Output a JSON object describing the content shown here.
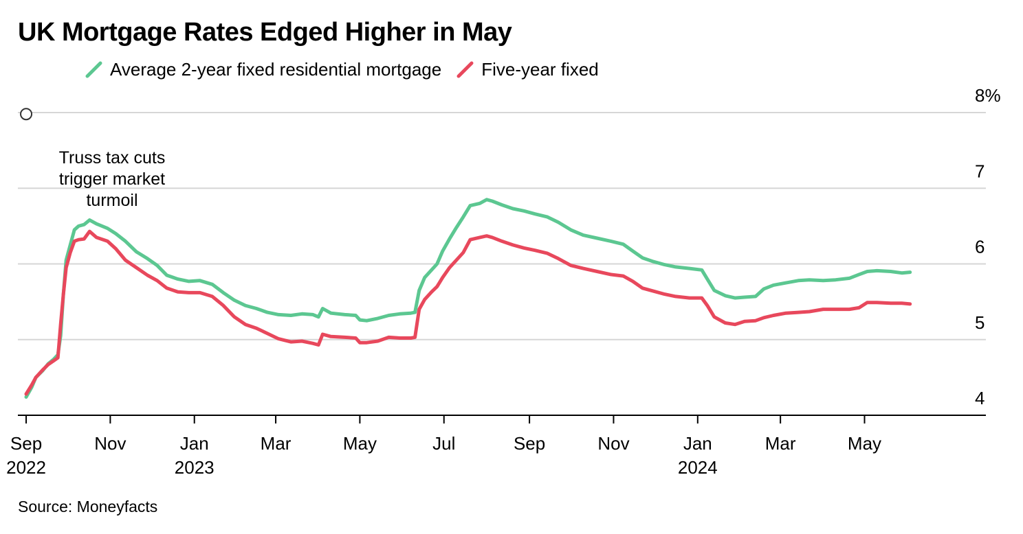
{
  "source": "Source: Moneyfacts",
  "chart_data": {
    "type": "line",
    "title": "UK Mortgage Rates Edged Higher in May",
    "xlabel": "",
    "ylabel": "",
    "ylim": [
      4,
      8
    ],
    "xlim": [
      "2022-08-26",
      "2024-07-28"
    ],
    "grid": true,
    "y_axis_side": "right",
    "legend_position": "top-left",
    "y_ticks": [
      {
        "value": 4,
        "label": "4"
      },
      {
        "value": 5,
        "label": "5"
      },
      {
        "value": 6,
        "label": "6"
      },
      {
        "value": 7,
        "label": "7"
      },
      {
        "value": 8,
        "label": "8%"
      }
    ],
    "x_ticks": [
      {
        "date": "2022-09-01",
        "label": "Sep",
        "sublabel": "2022"
      },
      {
        "date": "2022-11-01",
        "label": "Nov",
        "sublabel": ""
      },
      {
        "date": "2023-01-01",
        "label": "Jan",
        "sublabel": "2023"
      },
      {
        "date": "2023-03-01",
        "label": "Mar",
        "sublabel": ""
      },
      {
        "date": "2023-05-01",
        "label": "May",
        "sublabel": ""
      },
      {
        "date": "2023-07-01",
        "label": "Jul",
        "sublabel": ""
      },
      {
        "date": "2023-09-01",
        "label": "Sep",
        "sublabel": ""
      },
      {
        "date": "2023-11-01",
        "label": "Nov",
        "sublabel": ""
      },
      {
        "date": "2024-01-01",
        "label": "Jan",
        "sublabel": "2024"
      },
      {
        "date": "2024-03-01",
        "label": "Mar",
        "sublabel": ""
      },
      {
        "date": "2024-05-01",
        "label": "May",
        "sublabel": ""
      }
    ],
    "annotations": [
      {
        "date": "2022-09-01",
        "value": 7.98,
        "text_lines": [
          "Truss tax cuts",
          "trigger market",
          "turmoil"
        ]
      }
    ],
    "series": [
      {
        "name": "Average 2-year fixed residential mortgage",
        "color": "#5cc791",
        "points": [
          [
            "2022-09-01",
            4.24
          ],
          [
            "2022-09-05",
            4.37
          ],
          [
            "2022-09-08",
            4.5
          ],
          [
            "2022-09-13",
            4.59
          ],
          [
            "2022-09-17",
            4.68
          ],
          [
            "2022-09-21",
            4.74
          ],
          [
            "2022-09-24",
            4.8
          ],
          [
            "2022-09-26",
            5.05
          ],
          [
            "2022-09-28",
            5.6
          ],
          [
            "2022-09-30",
            6.05
          ],
          [
            "2022-10-03",
            6.25
          ],
          [
            "2022-10-06",
            6.45
          ],
          [
            "2022-10-09",
            6.5
          ],
          [
            "2022-10-13",
            6.52
          ],
          [
            "2022-10-17",
            6.58
          ],
          [
            "2022-10-22",
            6.53
          ],
          [
            "2022-10-30",
            6.47
          ],
          [
            "2022-11-05",
            6.4
          ],
          [
            "2022-11-12",
            6.3
          ],
          [
            "2022-11-20",
            6.16
          ],
          [
            "2022-11-28",
            6.07
          ],
          [
            "2022-12-05",
            5.98
          ],
          [
            "2022-12-12",
            5.85
          ],
          [
            "2022-12-20",
            5.8
          ],
          [
            "2022-12-28",
            5.77
          ],
          [
            "2023-01-05",
            5.78
          ],
          [
            "2023-01-14",
            5.73
          ],
          [
            "2023-01-22",
            5.62
          ],
          [
            "2023-01-30",
            5.52
          ],
          [
            "2023-02-07",
            5.45
          ],
          [
            "2023-02-15",
            5.41
          ],
          [
            "2023-02-23",
            5.36
          ],
          [
            "2023-03-03",
            5.33
          ],
          [
            "2023-03-12",
            5.32
          ],
          [
            "2023-03-20",
            5.34
          ],
          [
            "2023-03-28",
            5.33
          ],
          [
            "2023-04-01",
            5.3
          ],
          [
            "2023-04-04",
            5.41
          ],
          [
            "2023-04-10",
            5.35
          ],
          [
            "2023-04-20",
            5.33
          ],
          [
            "2023-04-28",
            5.32
          ],
          [
            "2023-05-01",
            5.26
          ],
          [
            "2023-05-06",
            5.25
          ],
          [
            "2023-05-14",
            5.28
          ],
          [
            "2023-05-22",
            5.32
          ],
          [
            "2023-05-30",
            5.34
          ],
          [
            "2023-06-07",
            5.35
          ],
          [
            "2023-06-10",
            5.36
          ],
          [
            "2023-06-13",
            5.65
          ],
          [
            "2023-06-17",
            5.82
          ],
          [
            "2023-06-22",
            5.92
          ],
          [
            "2023-06-26",
            6.0
          ],
          [
            "2023-06-30",
            6.17
          ],
          [
            "2023-07-05",
            6.33
          ],
          [
            "2023-07-10",
            6.48
          ],
          [
            "2023-07-15",
            6.62
          ],
          [
            "2023-07-20",
            6.77
          ],
          [
            "2023-07-27",
            6.8
          ],
          [
            "2023-08-01",
            6.85
          ],
          [
            "2023-08-05",
            6.83
          ],
          [
            "2023-08-12",
            6.78
          ],
          [
            "2023-08-20",
            6.73
          ],
          [
            "2023-08-28",
            6.7
          ],
          [
            "2023-09-05",
            6.66
          ],
          [
            "2023-09-14",
            6.62
          ],
          [
            "2023-09-22",
            6.55
          ],
          [
            "2023-10-01",
            6.45
          ],
          [
            "2023-10-10",
            6.38
          ],
          [
            "2023-10-20",
            6.34
          ],
          [
            "2023-10-30",
            6.3
          ],
          [
            "2023-11-08",
            6.26
          ],
          [
            "2023-11-15",
            6.17
          ],
          [
            "2023-11-22",
            6.08
          ],
          [
            "2023-11-30",
            6.03
          ],
          [
            "2023-12-08",
            5.99
          ],
          [
            "2023-12-16",
            5.96
          ],
          [
            "2023-12-26",
            5.94
          ],
          [
            "2024-01-04",
            5.92
          ],
          [
            "2024-01-08",
            5.8
          ],
          [
            "2024-01-13",
            5.65
          ],
          [
            "2024-01-21",
            5.58
          ],
          [
            "2024-01-28",
            5.55
          ],
          [
            "2024-02-04",
            5.56
          ],
          [
            "2024-02-12",
            5.57
          ],
          [
            "2024-02-18",
            5.67
          ],
          [
            "2024-02-25",
            5.72
          ],
          [
            "2024-03-05",
            5.75
          ],
          [
            "2024-03-14",
            5.78
          ],
          [
            "2024-03-22",
            5.79
          ],
          [
            "2024-04-01",
            5.78
          ],
          [
            "2024-04-10",
            5.79
          ],
          [
            "2024-04-20",
            5.81
          ],
          [
            "2024-04-27",
            5.86
          ],
          [
            "2024-05-03",
            5.9
          ],
          [
            "2024-05-10",
            5.91
          ],
          [
            "2024-05-20",
            5.9
          ],
          [
            "2024-05-28",
            5.88
          ],
          [
            "2024-06-03",
            5.89
          ]
        ]
      },
      {
        "name": "Five-year fixed",
        "color": "#e8485c",
        "points": [
          [
            "2022-09-01",
            4.28
          ],
          [
            "2022-09-05",
            4.4
          ],
          [
            "2022-09-08",
            4.5
          ],
          [
            "2022-09-13",
            4.6
          ],
          [
            "2022-09-17",
            4.67
          ],
          [
            "2022-09-21",
            4.72
          ],
          [
            "2022-09-24",
            4.76
          ],
          [
            "2022-09-26",
            5.2
          ],
          [
            "2022-09-28",
            5.6
          ],
          [
            "2022-09-30",
            5.95
          ],
          [
            "2022-10-03",
            6.15
          ],
          [
            "2022-10-06",
            6.3
          ],
          [
            "2022-10-09",
            6.32
          ],
          [
            "2022-10-13",
            6.33
          ],
          [
            "2022-10-17",
            6.43
          ],
          [
            "2022-10-22",
            6.35
          ],
          [
            "2022-10-30",
            6.3
          ],
          [
            "2022-11-05",
            6.2
          ],
          [
            "2022-11-12",
            6.05
          ],
          [
            "2022-11-20",
            5.95
          ],
          [
            "2022-11-28",
            5.85
          ],
          [
            "2022-12-05",
            5.78
          ],
          [
            "2022-12-12",
            5.68
          ],
          [
            "2022-12-20",
            5.63
          ],
          [
            "2022-12-28",
            5.62
          ],
          [
            "2023-01-05",
            5.62
          ],
          [
            "2023-01-14",
            5.57
          ],
          [
            "2023-01-22",
            5.45
          ],
          [
            "2023-01-30",
            5.3
          ],
          [
            "2023-02-07",
            5.2
          ],
          [
            "2023-02-15",
            5.15
          ],
          [
            "2023-02-23",
            5.08
          ],
          [
            "2023-03-03",
            5.01
          ],
          [
            "2023-03-12",
            4.97
          ],
          [
            "2023-03-20",
            4.98
          ],
          [
            "2023-03-28",
            4.95
          ],
          [
            "2023-04-01",
            4.93
          ],
          [
            "2023-04-04",
            5.07
          ],
          [
            "2023-04-10",
            5.04
          ],
          [
            "2023-04-20",
            5.03
          ],
          [
            "2023-04-28",
            5.02
          ],
          [
            "2023-05-01",
            4.96
          ],
          [
            "2023-05-06",
            4.96
          ],
          [
            "2023-05-14",
            4.98
          ],
          [
            "2023-05-22",
            5.03
          ],
          [
            "2023-05-30",
            5.02
          ],
          [
            "2023-06-07",
            5.02
          ],
          [
            "2023-06-10",
            5.03
          ],
          [
            "2023-06-13",
            5.4
          ],
          [
            "2023-06-17",
            5.53
          ],
          [
            "2023-06-22",
            5.63
          ],
          [
            "2023-06-26",
            5.7
          ],
          [
            "2023-06-30",
            5.82
          ],
          [
            "2023-07-05",
            5.95
          ],
          [
            "2023-07-10",
            6.05
          ],
          [
            "2023-07-15",
            6.15
          ],
          [
            "2023-07-20",
            6.32
          ],
          [
            "2023-07-27",
            6.35
          ],
          [
            "2023-08-01",
            6.37
          ],
          [
            "2023-08-05",
            6.35
          ],
          [
            "2023-08-12",
            6.3
          ],
          [
            "2023-08-20",
            6.25
          ],
          [
            "2023-08-28",
            6.21
          ],
          [
            "2023-09-05",
            6.18
          ],
          [
            "2023-09-14",
            6.14
          ],
          [
            "2023-09-22",
            6.07
          ],
          [
            "2023-10-01",
            5.98
          ],
          [
            "2023-10-10",
            5.94
          ],
          [
            "2023-10-20",
            5.9
          ],
          [
            "2023-10-30",
            5.86
          ],
          [
            "2023-11-08",
            5.84
          ],
          [
            "2023-11-15",
            5.77
          ],
          [
            "2023-11-22",
            5.68
          ],
          [
            "2023-11-30",
            5.64
          ],
          [
            "2023-12-08",
            5.6
          ],
          [
            "2023-12-16",
            5.57
          ],
          [
            "2023-12-26",
            5.55
          ],
          [
            "2024-01-04",
            5.55
          ],
          [
            "2024-01-08",
            5.45
          ],
          [
            "2024-01-13",
            5.3
          ],
          [
            "2024-01-21",
            5.22
          ],
          [
            "2024-01-28",
            5.2
          ],
          [
            "2024-02-04",
            5.24
          ],
          [
            "2024-02-12",
            5.25
          ],
          [
            "2024-02-18",
            5.29
          ],
          [
            "2024-02-25",
            5.32
          ],
          [
            "2024-03-05",
            5.35
          ],
          [
            "2024-03-14",
            5.36
          ],
          [
            "2024-03-22",
            5.37
          ],
          [
            "2024-04-01",
            5.4
          ],
          [
            "2024-04-10",
            5.4
          ],
          [
            "2024-04-20",
            5.4
          ],
          [
            "2024-04-27",
            5.42
          ],
          [
            "2024-05-03",
            5.49
          ],
          [
            "2024-05-10",
            5.49
          ],
          [
            "2024-05-20",
            5.48
          ],
          [
            "2024-05-28",
            5.48
          ],
          [
            "2024-06-03",
            5.47
          ]
        ]
      }
    ]
  }
}
